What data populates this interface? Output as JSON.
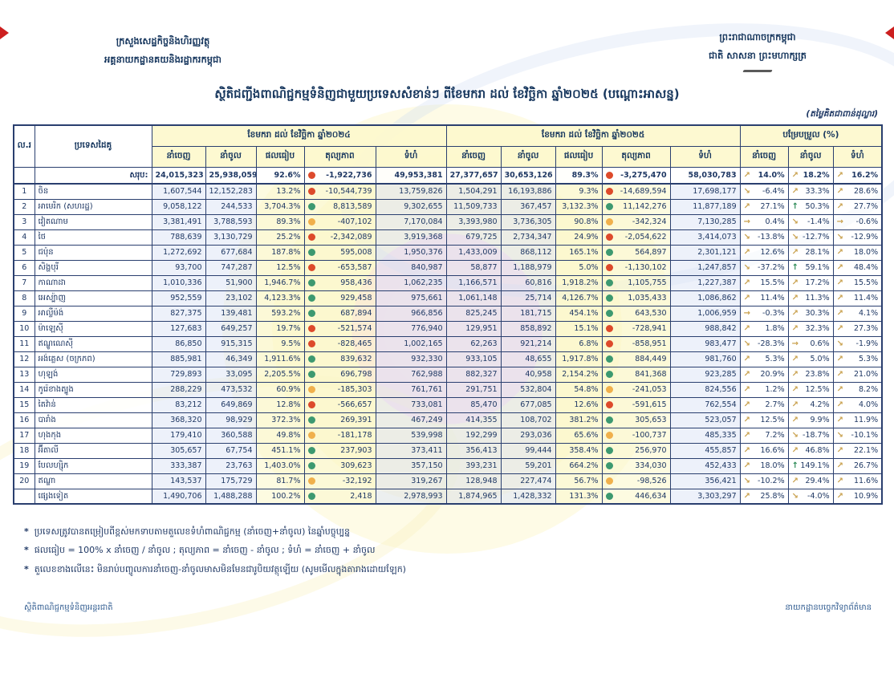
{
  "page": {
    "ministry_line1": "ក្រសួងសេដ្ឋកិច្ចនិងហិរញ្ញវត្ថុ",
    "ministry_line2": "អគ្គនាយកដ្ឋានគយនិងរដ្ឋាករកម្ពុជា",
    "kingdom_line1": "ព្រះរាជាណាចក្រកម្ពុជា",
    "kingdom_line2": "ជាតិ សាសនា ព្រះមហាក្សត្រ",
    "title": "ស្ថិតិជញ្ជីងពាណិជ្ជកម្មទំនិញជាមួយប្រទេសសំខាន់ៗ ពីខែមករា ដល់ ខែវិច្ឆិកា ឆ្នាំ២០២៥ (បណ្តោះអាសន្ន)",
    "unit_note": "(តម្លៃគិតជាពាន់ដុល្លារ)",
    "footer_left": "ស្ថិតិពាណិជ្ជកម្មទំនិញអន្តរជាតិ",
    "footer_right": "នាយកដ្ឋានបច្ចេកវិទ្យាព័ត៌មាន"
  },
  "icons": {
    "up": "↗",
    "down": "↘",
    "flat": "→",
    "strong_up": "↑"
  },
  "colors": {
    "navy_text": "#1f3864",
    "border": "#2a3f6f",
    "header_bg": "#fdf9cd",
    "blue_cell": "#dee6f6",
    "yellow_cell": "#fcf9cd",
    "dot_green": "#3d9970",
    "dot_red": "#dd4a2b",
    "dot_amber": "#f0b04c",
    "arrow_gold": "#c9a14d",
    "arrow_green": "#2e8b57",
    "fold_mark": "#cc1f1f"
  },
  "table": {
    "col_no": "ល.រ",
    "col_country": "ប្រទេសដៃគូ",
    "group_2024": "ខែមករា ដល់ ខែវិច្ឆិកា ឆ្នាំ២០២៤",
    "group_2025": "ខែមករា ដល់ ខែវិច្ឆិកា ឆ្នាំ២០២៥",
    "group_change": "បម្រែបម្រួល (%)",
    "sub_export": "នាំចេញ",
    "sub_import": "នាំចូល",
    "sub_ratio": "ផលធៀប",
    "sub_balance": "តុល្យភាព",
    "sub_total": "ទំហំ",
    "totals": {
      "no": "",
      "country": "សរុប:",
      "y24": [
        "24,015,323",
        "25,938,059",
        "92.6%",
        "-1,922,736",
        "49,953,381"
      ],
      "d24": "red",
      "y25": [
        "27,377,657",
        "30,653,126",
        "89.3%",
        "-3,275,470",
        "58,030,783"
      ],
      "d25": "red",
      "chg": [
        [
          "up",
          "14.0%"
        ],
        [
          "up",
          "18.2%"
        ],
        [
          "up",
          "16.2%"
        ]
      ]
    },
    "rows": [
      {
        "no": "1",
        "country": "ចិន",
        "y24": [
          "1,607,544",
          "12,152,283",
          "13.2%",
          "-10,544,739",
          "13,759,826"
        ],
        "d24": "red",
        "y25": [
          "1,504,291",
          "16,193,886",
          "9.3%",
          "-14,689,594",
          "17,698,177"
        ],
        "d25": "red",
        "chg": [
          [
            "down",
            "-6.4%"
          ],
          [
            "up",
            "33.3%"
          ],
          [
            "up",
            "28.6%"
          ]
        ]
      },
      {
        "no": "2",
        "country": "អាមេរិក (សហរដ្ឋ)",
        "y24": [
          "9,058,122",
          "244,533",
          "3,704.3%",
          "8,813,589",
          "9,302,655"
        ],
        "d24": "green",
        "y25": [
          "11,509,733",
          "367,457",
          "3,132.3%",
          "11,142,276",
          "11,877,189"
        ],
        "d25": "green",
        "chg": [
          [
            "up",
            "27.1%"
          ],
          [
            "strong_up",
            "50.3%"
          ],
          [
            "up",
            "27.7%"
          ]
        ]
      },
      {
        "no": "3",
        "country": "វៀតណាម",
        "y24": [
          "3,381,491",
          "3,788,593",
          "89.3%",
          "-407,102",
          "7,170,084"
        ],
        "d24": "amber",
        "y25": [
          "3,393,980",
          "3,736,305",
          "90.8%",
          "-342,324",
          "7,130,285"
        ],
        "d25": "amber",
        "chg": [
          [
            "flat",
            "0.4%"
          ],
          [
            "down",
            "-1.4%"
          ],
          [
            "flat",
            "-0.6%"
          ]
        ]
      },
      {
        "no": "4",
        "country": "ថៃ",
        "y24": [
          "788,639",
          "3,130,729",
          "25.2%",
          "-2,342,089",
          "3,919,368"
        ],
        "d24": "red",
        "y25": [
          "679,725",
          "2,734,347",
          "24.9%",
          "-2,054,622",
          "3,414,073"
        ],
        "d25": "red",
        "chg": [
          [
            "down",
            "-13.8%"
          ],
          [
            "down",
            "-12.7%"
          ],
          [
            "down",
            "-12.9%"
          ]
        ]
      },
      {
        "no": "5",
        "country": "ជប៉ុន",
        "y24": [
          "1,272,692",
          "677,684",
          "187.8%",
          "595,008",
          "1,950,376"
        ],
        "d24": "green",
        "y25": [
          "1,433,009",
          "868,112",
          "165.1%",
          "564,897",
          "2,301,121"
        ],
        "d25": "green",
        "chg": [
          [
            "up",
            "12.6%"
          ],
          [
            "up",
            "28.1%"
          ],
          [
            "up",
            "18.0%"
          ]
        ]
      },
      {
        "no": "6",
        "country": "សិង្ហបុរី",
        "y24": [
          "93,700",
          "747,287",
          "12.5%",
          "-653,587",
          "840,987"
        ],
        "d24": "red",
        "y25": [
          "58,877",
          "1,188,979",
          "5.0%",
          "-1,130,102",
          "1,247,857"
        ],
        "d25": "red",
        "chg": [
          [
            "down",
            "-37.2%"
          ],
          [
            "strong_up",
            "59.1%"
          ],
          [
            "up",
            "48.4%"
          ]
        ]
      },
      {
        "no": "7",
        "country": "កាណាដា",
        "y24": [
          "1,010,336",
          "51,900",
          "1,946.7%",
          "958,436",
          "1,062,235"
        ],
        "d24": "green",
        "y25": [
          "1,166,571",
          "60,816",
          "1,918.2%",
          "1,105,755",
          "1,227,387"
        ],
        "d25": "green",
        "chg": [
          [
            "up",
            "15.5%"
          ],
          [
            "up",
            "17.2%"
          ],
          [
            "up",
            "15.5%"
          ]
        ]
      },
      {
        "no": "8",
        "country": "អេស្ប៉ាញ",
        "y24": [
          "952,559",
          "23,102",
          "4,123.3%",
          "929,458",
          "975,661"
        ],
        "d24": "green",
        "y25": [
          "1,061,148",
          "25,714",
          "4,126.7%",
          "1,035,433",
          "1,086,862"
        ],
        "d25": "green",
        "chg": [
          [
            "up",
            "11.4%"
          ],
          [
            "up",
            "11.3%"
          ],
          [
            "up",
            "11.4%"
          ]
        ]
      },
      {
        "no": "9",
        "country": "អាល្លឺម៉ង់",
        "y24": [
          "827,375",
          "139,481",
          "593.2%",
          "687,894",
          "966,856"
        ],
        "d24": "green",
        "y25": [
          "825,245",
          "181,715",
          "454.1%",
          "643,530",
          "1,006,959"
        ],
        "d25": "green",
        "chg": [
          [
            "flat",
            "-0.3%"
          ],
          [
            "up",
            "30.3%"
          ],
          [
            "up",
            "4.1%"
          ]
        ]
      },
      {
        "no": "10",
        "country": "ម៉ាឡេស៊ី",
        "y24": [
          "127,683",
          "649,257",
          "19.7%",
          "-521,574",
          "776,940"
        ],
        "d24": "red",
        "y25": [
          "129,951",
          "858,892",
          "15.1%",
          "-728,941",
          "988,842"
        ],
        "d25": "red",
        "chg": [
          [
            "up",
            "1.8%"
          ],
          [
            "up",
            "32.3%"
          ],
          [
            "up",
            "27.3%"
          ]
        ]
      },
      {
        "no": "11",
        "country": "ឥណ្ឌូណេស៊ី",
        "y24": [
          "86,850",
          "915,315",
          "9.5%",
          "-828,465",
          "1,002,165"
        ],
        "d24": "red",
        "y25": [
          "62,263",
          "921,214",
          "6.8%",
          "-858,951",
          "983,477"
        ],
        "d25": "red",
        "chg": [
          [
            "down",
            "-28.3%"
          ],
          [
            "flat",
            "0.6%"
          ],
          [
            "down",
            "-1.9%"
          ]
        ]
      },
      {
        "no": "12",
        "country": "អង់គ្លេស (ចក្រភព)",
        "y24": [
          "885,981",
          "46,349",
          "1,911.6%",
          "839,632",
          "932,330"
        ],
        "d24": "green",
        "y25": [
          "933,105",
          "48,655",
          "1,917.8%",
          "884,449",
          "981,760"
        ],
        "d25": "green",
        "chg": [
          [
            "up",
            "5.3%"
          ],
          [
            "up",
            "5.0%"
          ],
          [
            "up",
            "5.3%"
          ]
        ]
      },
      {
        "no": "13",
        "country": "ហុឡង់",
        "y24": [
          "729,893",
          "33,095",
          "2,205.5%",
          "696,798",
          "762,988"
        ],
        "d24": "green",
        "y25": [
          "882,327",
          "40,958",
          "2,154.2%",
          "841,368",
          "923,285"
        ],
        "d25": "green",
        "chg": [
          [
            "up",
            "20.9%"
          ],
          [
            "up",
            "23.8%"
          ],
          [
            "up",
            "21.0%"
          ]
        ]
      },
      {
        "no": "14",
        "country": "កូរ៉េខាងត្បូង",
        "y24": [
          "288,229",
          "473,532",
          "60.9%",
          "-185,303",
          "761,761"
        ],
        "d24": "amber",
        "y25": [
          "291,751",
          "532,804",
          "54.8%",
          "-241,053",
          "824,556"
        ],
        "d25": "amber",
        "chg": [
          [
            "up",
            "1.2%"
          ],
          [
            "up",
            "12.5%"
          ],
          [
            "up",
            "8.2%"
          ]
        ]
      },
      {
        "no": "15",
        "country": "តៃវ៉ាន់",
        "y24": [
          "83,212",
          "649,869",
          "12.8%",
          "-566,657",
          "733,081"
        ],
        "d24": "red",
        "y25": [
          "85,470",
          "677,085",
          "12.6%",
          "-591,615",
          "762,554"
        ],
        "d25": "red",
        "chg": [
          [
            "up",
            "2.7%"
          ],
          [
            "up",
            "4.2%"
          ],
          [
            "up",
            "4.0%"
          ]
        ]
      },
      {
        "no": "16",
        "country": "បារាំង",
        "y24": [
          "368,320",
          "98,929",
          "372.3%",
          "269,391",
          "467,249"
        ],
        "d24": "green",
        "y25": [
          "414,355",
          "108,702",
          "381.2%",
          "305,653",
          "523,057"
        ],
        "d25": "green",
        "chg": [
          [
            "up",
            "12.5%"
          ],
          [
            "up",
            "9.9%"
          ],
          [
            "up",
            "11.9%"
          ]
        ]
      },
      {
        "no": "17",
        "country": "ហុងកុង",
        "y24": [
          "179,410",
          "360,588",
          "49.8%",
          "-181,178",
          "539,998"
        ],
        "d24": "amber",
        "y25": [
          "192,299",
          "293,036",
          "65.6%",
          "-100,737",
          "485,335"
        ],
        "d25": "amber",
        "chg": [
          [
            "up",
            "7.2%"
          ],
          [
            "down",
            "-18.7%"
          ],
          [
            "down",
            "-10.1%"
          ]
        ]
      },
      {
        "no": "18",
        "country": "អ៊ីតាលី",
        "y24": [
          "305,657",
          "67,754",
          "451.1%",
          "237,903",
          "373,411"
        ],
        "d24": "green",
        "y25": [
          "356,413",
          "99,444",
          "358.4%",
          "256,970",
          "455,857"
        ],
        "d25": "green",
        "chg": [
          [
            "up",
            "16.6%"
          ],
          [
            "up",
            "46.8%"
          ],
          [
            "up",
            "22.1%"
          ]
        ]
      },
      {
        "no": "19",
        "country": "បែលហ្ស៊ិក",
        "y24": [
          "333,387",
          "23,763",
          "1,403.0%",
          "309,623",
          "357,150"
        ],
        "d24": "green",
        "y25": [
          "393,231",
          "59,201",
          "664.2%",
          "334,030",
          "452,433"
        ],
        "d25": "green",
        "chg": [
          [
            "up",
            "18.0%"
          ],
          [
            "strong_up",
            "149.1%"
          ],
          [
            "up",
            "26.7%"
          ]
        ]
      },
      {
        "no": "20",
        "country": "ឥណ្ឌា",
        "y24": [
          "143,537",
          "175,729",
          "81.7%",
          "-32,192",
          "319,267"
        ],
        "d24": "amber",
        "y25": [
          "128,948",
          "227,474",
          "56.7%",
          "-98,526",
          "356,421"
        ],
        "d25": "amber",
        "chg": [
          [
            "down",
            "-10.2%"
          ],
          [
            "up",
            "29.4%"
          ],
          [
            "up",
            "11.6%"
          ]
        ]
      },
      {
        "no": "",
        "country": "ផ្សេងទៀត",
        "y24": [
          "1,490,706",
          "1,488,288",
          "100.2%",
          "2,418",
          "2,978,993"
        ],
        "d24": "green",
        "y25": [
          "1,874,965",
          "1,428,332",
          "131.3%",
          "446,634",
          "3,303,297"
        ],
        "d25": "green",
        "chg": [
          [
            "up",
            "25.8%"
          ],
          [
            "down",
            "-4.0%"
          ],
          [
            "up",
            "10.9%"
          ]
        ]
      }
    ]
  },
  "footnotes": [
    "ប្រទេសត្រូវបានតម្រៀបពីខ្ពស់មកទាបតាមតួលេខទំហំពាណិជ្ជកម្ម (នាំចេញ+នាំចូល) នៃឆ្នាំបច្ចុប្បន្ន",
    "ផលធៀប = 100% x នាំចេញ / នាំចូល ; តុល្យភាព = នាំចេញ - នាំចូល ; ទំហំ = នាំចេញ + នាំចូល",
    "តួលេខខាងលើនេះ មិនរាប់បញ្ចូលការនាំចេញ-នាំចូលមាសមិនមែនជារូបិយវត្ថុឡើយ (សូមមើលក្នុងតារាងដោយឡែក)"
  ]
}
